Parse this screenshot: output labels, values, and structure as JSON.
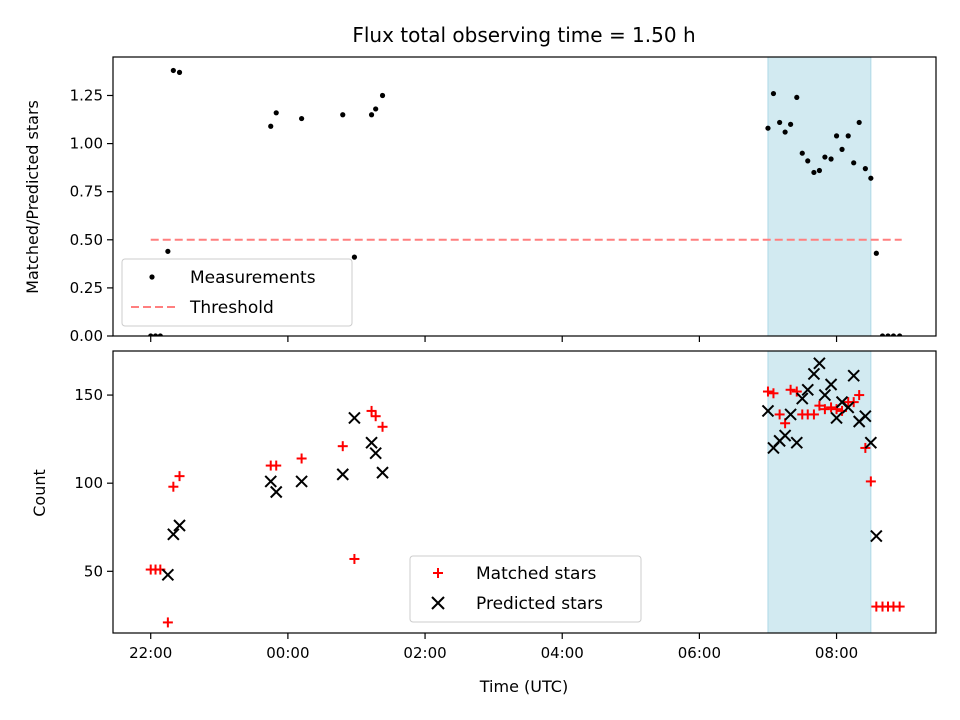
{
  "chart_data": [
    {
      "type": "scatter",
      "title": "Flux total observing time = 1.50 h",
      "xlabel": "",
      "ylabel": "Matched/Predicted stars",
      "x_unit": "hours since 22:00 UTC",
      "xlim": [
        -0.55,
        11.45
      ],
      "ylim": [
        0,
        1.45
      ],
      "yticks": [
        0.0,
        0.25,
        0.5,
        0.75,
        1.0,
        1.25
      ],
      "ytick_labels": [
        "0.00",
        "0.25",
        "0.50",
        "0.75",
        "1.00",
        "1.25"
      ],
      "shaded_region": {
        "x_start": 9.0,
        "x_end": 10.5,
        "color": "#add8e6"
      },
      "threshold": {
        "name": "Threshold",
        "y": 0.5,
        "x_start": 0.0,
        "x_end": 10.95,
        "color": "#ff7f7f",
        "style": "dashed"
      },
      "legend": {
        "placement": "lower-left"
      },
      "series": [
        {
          "name": "Measurements",
          "color": "#000000",
          "marker": "dot",
          "points": [
            [
              0.0,
              0.0
            ],
            [
              0.07,
              0.0
            ],
            [
              0.14,
              0.0
            ],
            [
              0.25,
              0.44
            ],
            [
              0.33,
              1.38
            ],
            [
              0.42,
              1.37
            ],
            [
              1.75,
              1.09
            ],
            [
              1.83,
              1.16
            ],
            [
              2.2,
              1.13
            ],
            [
              2.8,
              1.15
            ],
            [
              2.97,
              0.41
            ],
            [
              3.22,
              1.15
            ],
            [
              3.28,
              1.18
            ],
            [
              3.38,
              1.25
            ],
            [
              9.0,
              1.08
            ],
            [
              9.08,
              1.26
            ],
            [
              9.17,
              1.11
            ],
            [
              9.25,
              1.06
            ],
            [
              9.33,
              1.1
            ],
            [
              9.42,
              1.24
            ],
            [
              9.5,
              0.95
            ],
            [
              9.58,
              0.91
            ],
            [
              9.67,
              0.85
            ],
            [
              9.75,
              0.86
            ],
            [
              9.83,
              0.93
            ],
            [
              9.92,
              0.92
            ],
            [
              10.0,
              1.04
            ],
            [
              10.08,
              0.97
            ],
            [
              10.17,
              1.04
            ],
            [
              10.25,
              0.9
            ],
            [
              10.33,
              1.11
            ],
            [
              10.42,
              0.87
            ],
            [
              10.5,
              0.82
            ],
            [
              10.58,
              0.43
            ],
            [
              10.67,
              0.0
            ],
            [
              10.75,
              0.0
            ],
            [
              10.83,
              0.0
            ],
            [
              10.92,
              0.0
            ]
          ]
        }
      ]
    },
    {
      "type": "scatter",
      "title": "",
      "xlabel": "Time (UTC)",
      "ylabel": "Count",
      "x_unit": "hours since 22:00 UTC",
      "xlim": [
        -0.55,
        11.45
      ],
      "ylim": [
        15,
        175
      ],
      "yticks": [
        50,
        100,
        150
      ],
      "ytick_labels": [
        "50",
        "100",
        "150"
      ],
      "xticks": [
        0,
        2,
        4,
        6,
        8,
        10
      ],
      "xtick_labels": [
        "22:00",
        "00:00",
        "02:00",
        "04:00",
        "06:00",
        "08:00"
      ],
      "shaded_region": {
        "x_start": 9.0,
        "x_end": 10.5,
        "color": "#add8e6"
      },
      "legend": {
        "placement": "lower-center"
      },
      "series": [
        {
          "name": "Matched stars",
          "color": "#ff0000",
          "marker": "plus",
          "points": [
            [
              0.0,
              51
            ],
            [
              0.07,
              51
            ],
            [
              0.14,
              51
            ],
            [
              0.25,
              21
            ],
            [
              0.33,
              98
            ],
            [
              0.42,
              104
            ],
            [
              1.75,
              110
            ],
            [
              1.83,
              110
            ],
            [
              2.2,
              114
            ],
            [
              2.8,
              121
            ],
            [
              2.97,
              57
            ],
            [
              3.22,
              141
            ],
            [
              3.28,
              138
            ],
            [
              3.38,
              132
            ],
            [
              9.0,
              152
            ],
            [
              9.08,
              151
            ],
            [
              9.17,
              139
            ],
            [
              9.25,
              134
            ],
            [
              9.33,
              153
            ],
            [
              9.42,
              152
            ],
            [
              9.5,
              139
            ],
            [
              9.58,
              139
            ],
            [
              9.67,
              139
            ],
            [
              9.75,
              144
            ],
            [
              9.83,
              142
            ],
            [
              9.92,
              143
            ],
            [
              10.0,
              142
            ],
            [
              10.08,
              141
            ],
            [
              10.17,
              146
            ],
            [
              10.25,
              146
            ],
            [
              10.33,
              150
            ],
            [
              10.42,
              120
            ],
            [
              10.5,
              101
            ],
            [
              10.58,
              30
            ],
            [
              10.67,
              30
            ],
            [
              10.75,
              30
            ],
            [
              10.83,
              30
            ],
            [
              10.92,
              30
            ]
          ]
        },
        {
          "name": "Predicted stars",
          "color": "#000000",
          "marker": "x",
          "points": [
            [
              0.25,
              48
            ],
            [
              0.33,
              71
            ],
            [
              0.42,
              76
            ],
            [
              1.75,
              101
            ],
            [
              1.83,
              95
            ],
            [
              2.2,
              101
            ],
            [
              2.8,
              105
            ],
            [
              2.97,
              137
            ],
            [
              3.22,
              123
            ],
            [
              3.28,
              117
            ],
            [
              3.38,
              106
            ],
            [
              9.0,
              141
            ],
            [
              9.08,
              120
            ],
            [
              9.17,
              124
            ],
            [
              9.25,
              127
            ],
            [
              9.33,
              139
            ],
            [
              9.42,
              123
            ],
            [
              9.5,
              148
            ],
            [
              9.58,
              153
            ],
            [
              9.67,
              162
            ],
            [
              9.75,
              168
            ],
            [
              9.83,
              150
            ],
            [
              9.92,
              156
            ],
            [
              10.0,
              137
            ],
            [
              10.08,
              146
            ],
            [
              10.17,
              143
            ],
            [
              10.25,
              161
            ],
            [
              10.33,
              135
            ],
            [
              10.42,
              138
            ],
            [
              10.5,
              123
            ],
            [
              10.58,
              70
            ]
          ]
        }
      ]
    }
  ]
}
